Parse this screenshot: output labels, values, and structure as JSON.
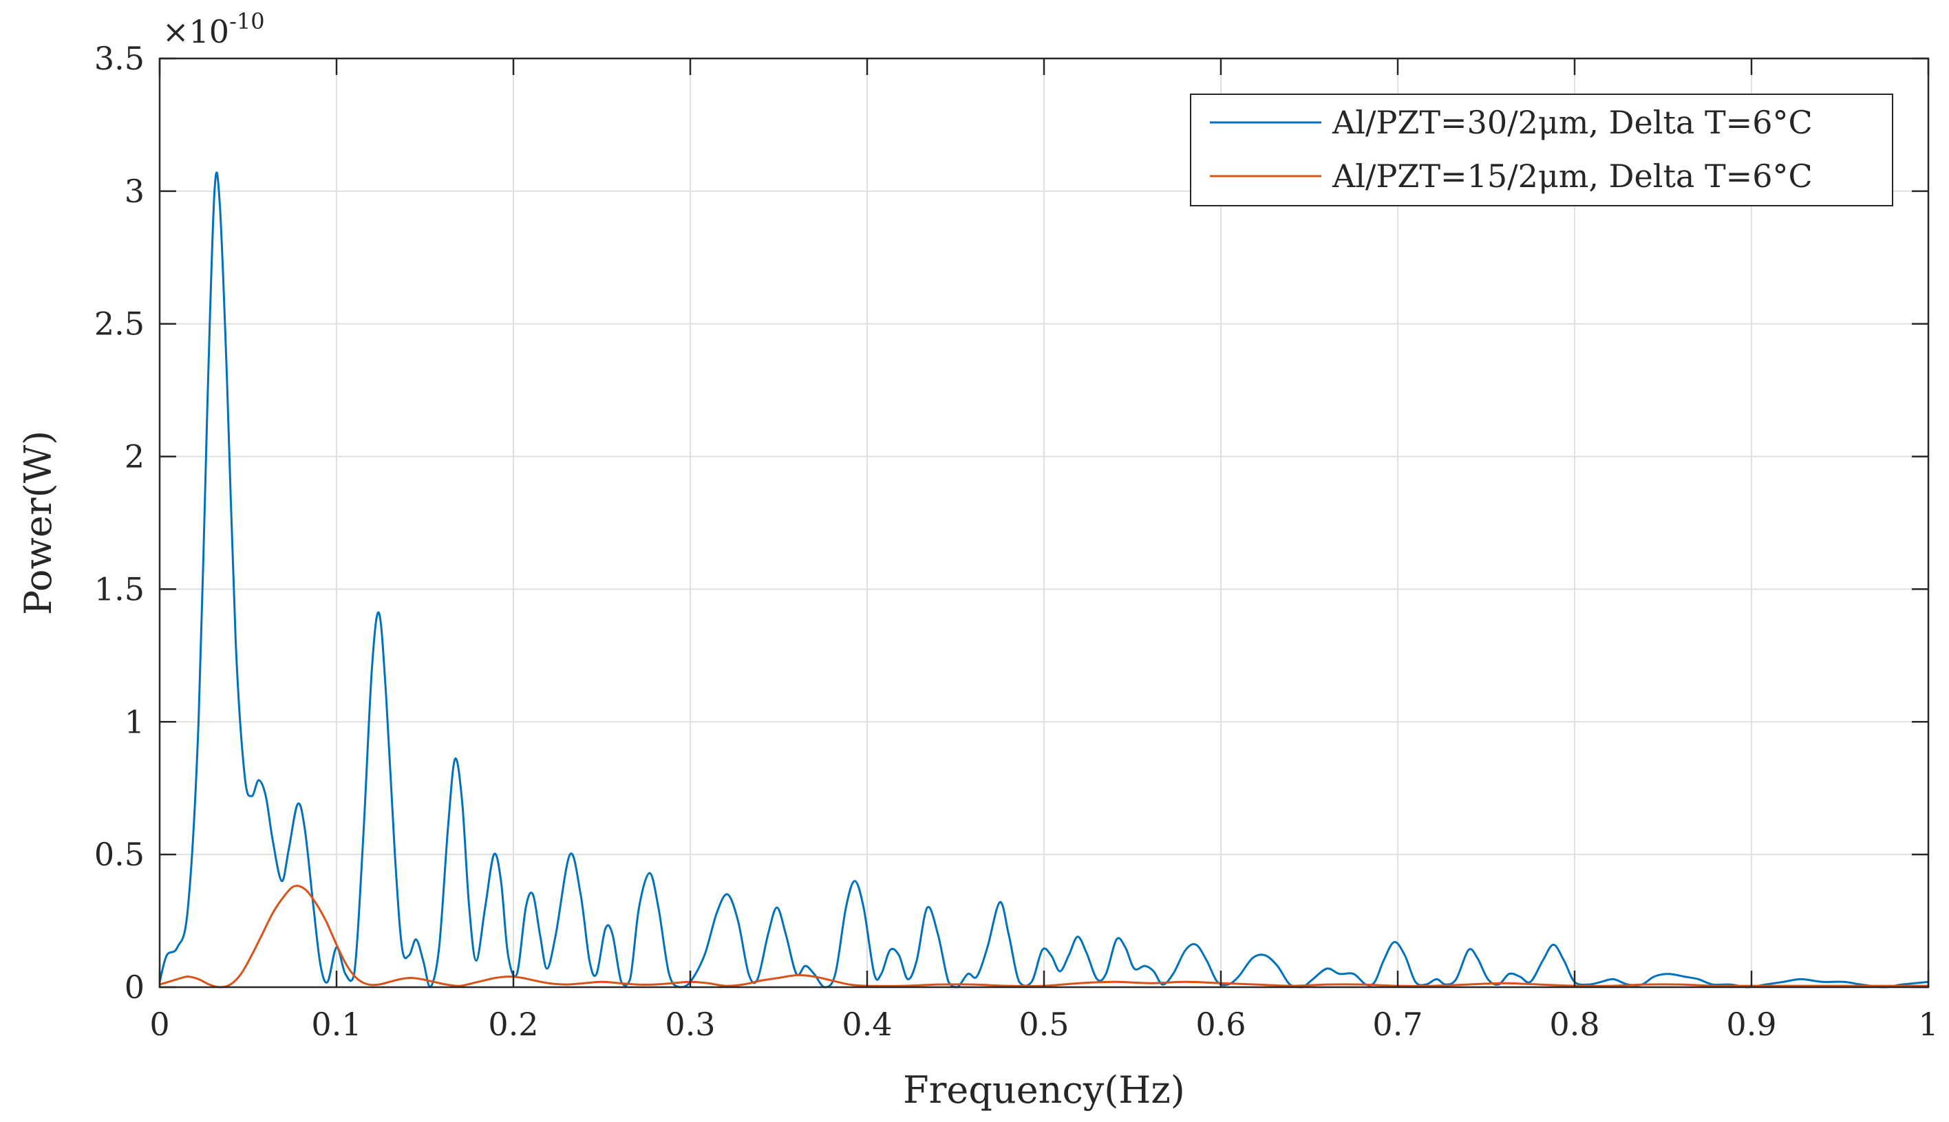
{
  "chart_data": {
    "type": "line",
    "title": "",
    "xlabel": "Frequency(Hz)",
    "ylabel": "Power(W)",
    "xlim": [
      0,
      1
    ],
    "ylim": [
      0,
      3.5
    ],
    "y_multiplier_base": "×10",
    "y_multiplier_exponent": "-10",
    "x_ticks": [
      {
        "v": 0,
        "label": "0"
      },
      {
        "v": 0.1,
        "label": "0.1"
      },
      {
        "v": 0.2,
        "label": "0.2"
      },
      {
        "v": 0.3,
        "label": "0.3"
      },
      {
        "v": 0.4,
        "label": "0.4"
      },
      {
        "v": 0.5,
        "label": "0.5"
      },
      {
        "v": 0.6,
        "label": "0.6"
      },
      {
        "v": 0.7,
        "label": "0.7"
      },
      {
        "v": 0.8,
        "label": "0.8"
      },
      {
        "v": 0.9,
        "label": "0.9"
      },
      {
        "v": 1,
        "label": "1"
      }
    ],
    "y_ticks": [
      {
        "v": 0,
        "label": "0"
      },
      {
        "v": 0.5,
        "label": "0.5"
      },
      {
        "v": 1,
        "label": "1"
      },
      {
        "v": 1.5,
        "label": "1.5"
      },
      {
        "v": 2,
        "label": "2"
      },
      {
        "v": 2.5,
        "label": "2.5"
      },
      {
        "v": 3,
        "label": "3"
      },
      {
        "v": 3.5,
        "label": "3.5"
      }
    ],
    "grid": true,
    "legend_position": "top-right",
    "series": [
      {
        "name": "Al/PZT=30/2μm, Delta T=6°C",
        "color": "#0072BD",
        "points": [
          [
            0.0,
            0.02
          ],
          [
            0.004,
            0.12
          ],
          [
            0.01,
            0.15
          ],
          [
            0.016,
            0.3
          ],
          [
            0.022,
            1.0
          ],
          [
            0.027,
            2.2
          ],
          [
            0.031,
            3.0
          ],
          [
            0.034,
            2.95
          ],
          [
            0.038,
            2.3
          ],
          [
            0.043,
            1.3
          ],
          [
            0.048,
            0.8
          ],
          [
            0.052,
            0.72
          ],
          [
            0.056,
            0.78
          ],
          [
            0.06,
            0.72
          ],
          [
            0.064,
            0.55
          ],
          [
            0.069,
            0.4
          ],
          [
            0.073,
            0.52
          ],
          [
            0.078,
            0.69
          ],
          [
            0.082,
            0.6
          ],
          [
            0.087,
            0.3
          ],
          [
            0.091,
            0.08
          ],
          [
            0.095,
            0.02
          ],
          [
            0.1,
            0.15
          ],
          [
            0.105,
            0.05
          ],
          [
            0.11,
            0.05
          ],
          [
            0.115,
            0.55
          ],
          [
            0.12,
            1.2
          ],
          [
            0.124,
            1.41
          ],
          [
            0.128,
            1.1
          ],
          [
            0.133,
            0.5
          ],
          [
            0.137,
            0.15
          ],
          [
            0.141,
            0.12
          ],
          [
            0.145,
            0.18
          ],
          [
            0.149,
            0.1
          ],
          [
            0.153,
            0.0
          ],
          [
            0.158,
            0.15
          ],
          [
            0.163,
            0.6
          ],
          [
            0.167,
            0.86
          ],
          [
            0.171,
            0.7
          ],
          [
            0.175,
            0.3
          ],
          [
            0.179,
            0.1
          ],
          [
            0.184,
            0.3
          ],
          [
            0.189,
            0.5
          ],
          [
            0.193,
            0.4
          ],
          [
            0.197,
            0.12
          ],
          [
            0.202,
            0.05
          ],
          [
            0.207,
            0.3
          ],
          [
            0.211,
            0.35
          ],
          [
            0.215,
            0.2
          ],
          [
            0.219,
            0.07
          ],
          [
            0.224,
            0.2
          ],
          [
            0.232,
            0.5
          ],
          [
            0.238,
            0.35
          ],
          [
            0.243,
            0.1
          ],
          [
            0.247,
            0.05
          ],
          [
            0.252,
            0.22
          ],
          [
            0.256,
            0.2
          ],
          [
            0.261,
            0.02
          ],
          [
            0.266,
            0.03
          ],
          [
            0.271,
            0.3
          ],
          [
            0.277,
            0.43
          ],
          [
            0.282,
            0.3
          ],
          [
            0.288,
            0.05
          ],
          [
            0.294,
            0.0
          ],
          [
            0.3,
            0.02
          ],
          [
            0.308,
            0.12
          ],
          [
            0.315,
            0.28
          ],
          [
            0.321,
            0.35
          ],
          [
            0.327,
            0.25
          ],
          [
            0.333,
            0.05
          ],
          [
            0.338,
            0.03
          ],
          [
            0.344,
            0.2
          ],
          [
            0.349,
            0.3
          ],
          [
            0.354,
            0.2
          ],
          [
            0.36,
            0.05
          ],
          [
            0.365,
            0.08
          ],
          [
            0.37,
            0.05
          ],
          [
            0.376,
            0.0
          ],
          [
            0.382,
            0.05
          ],
          [
            0.388,
            0.3
          ],
          [
            0.393,
            0.4
          ],
          [
            0.398,
            0.3
          ],
          [
            0.404,
            0.05
          ],
          [
            0.408,
            0.05
          ],
          [
            0.413,
            0.14
          ],
          [
            0.418,
            0.12
          ],
          [
            0.423,
            0.03
          ],
          [
            0.428,
            0.1
          ],
          [
            0.434,
            0.3
          ],
          [
            0.44,
            0.2
          ],
          [
            0.446,
            0.02
          ],
          [
            0.451,
            0.0
          ],
          [
            0.457,
            0.05
          ],
          [
            0.462,
            0.04
          ],
          [
            0.468,
            0.15
          ],
          [
            0.475,
            0.32
          ],
          [
            0.48,
            0.2
          ],
          [
            0.486,
            0.02
          ],
          [
            0.493,
            0.02
          ],
          [
            0.499,
            0.14
          ],
          [
            0.504,
            0.12
          ],
          [
            0.509,
            0.06
          ],
          [
            0.514,
            0.12
          ],
          [
            0.519,
            0.19
          ],
          [
            0.524,
            0.13
          ],
          [
            0.53,
            0.03
          ],
          [
            0.535,
            0.05
          ],
          [
            0.541,
            0.18
          ],
          [
            0.546,
            0.15
          ],
          [
            0.551,
            0.07
          ],
          [
            0.557,
            0.08
          ],
          [
            0.562,
            0.06
          ],
          [
            0.567,
            0.01
          ],
          [
            0.573,
            0.05
          ],
          [
            0.58,
            0.14
          ],
          [
            0.586,
            0.16
          ],
          [
            0.592,
            0.1
          ],
          [
            0.598,
            0.02
          ],
          [
            0.604,
            0.01
          ],
          [
            0.61,
            0.04
          ],
          [
            0.618,
            0.11
          ],
          [
            0.625,
            0.12
          ],
          [
            0.632,
            0.08
          ],
          [
            0.639,
            0.01
          ],
          [
            0.646,
            0.0
          ],
          [
            0.652,
            0.03
          ],
          [
            0.66,
            0.07
          ],
          [
            0.667,
            0.05
          ],
          [
            0.675,
            0.05
          ],
          [
            0.682,
            0.01
          ],
          [
            0.687,
            0.02
          ],
          [
            0.692,
            0.1
          ],
          [
            0.698,
            0.17
          ],
          [
            0.704,
            0.12
          ],
          [
            0.71,
            0.02
          ],
          [
            0.716,
            0.01
          ],
          [
            0.722,
            0.03
          ],
          [
            0.727,
            0.01
          ],
          [
            0.733,
            0.03
          ],
          [
            0.74,
            0.14
          ],
          [
            0.745,
            0.11
          ],
          [
            0.751,
            0.03
          ],
          [
            0.757,
            0.01
          ],
          [
            0.763,
            0.05
          ],
          [
            0.769,
            0.04
          ],
          [
            0.775,
            0.02
          ],
          [
            0.782,
            0.1
          ],
          [
            0.788,
            0.16
          ],
          [
            0.794,
            0.1
          ],
          [
            0.8,
            0.02
          ],
          [
            0.808,
            0.01
          ],
          [
            0.815,
            0.02
          ],
          [
            0.822,
            0.03
          ],
          [
            0.83,
            0.01
          ],
          [
            0.838,
            0.01
          ],
          [
            0.845,
            0.04
          ],
          [
            0.853,
            0.05
          ],
          [
            0.862,
            0.04
          ],
          [
            0.87,
            0.03
          ],
          [
            0.878,
            0.01
          ],
          [
            0.888,
            0.01
          ],
          [
            0.898,
            0.0
          ],
          [
            0.908,
            0.01
          ],
          [
            0.918,
            0.02
          ],
          [
            0.928,
            0.03
          ],
          [
            0.94,
            0.02
          ],
          [
            0.952,
            0.02
          ],
          [
            0.962,
            0.01
          ],
          [
            0.975,
            0.0
          ],
          [
            0.985,
            0.01
          ],
          [
            1.0,
            0.02
          ]
        ]
      },
      {
        "name": "Al/PZT=15/2μm, Delta T=6°C",
        "color": "#D95319",
        "points": [
          [
            0.0,
            0.01
          ],
          [
            0.005,
            0.02
          ],
          [
            0.01,
            0.03
          ],
          [
            0.016,
            0.04
          ],
          [
            0.022,
            0.03
          ],
          [
            0.028,
            0.01
          ],
          [
            0.034,
            0.0
          ],
          [
            0.04,
            0.01
          ],
          [
            0.046,
            0.05
          ],
          [
            0.052,
            0.12
          ],
          [
            0.058,
            0.2
          ],
          [
            0.064,
            0.28
          ],
          [
            0.07,
            0.34
          ],
          [
            0.076,
            0.38
          ],
          [
            0.082,
            0.37
          ],
          [
            0.088,
            0.32
          ],
          [
            0.094,
            0.25
          ],
          [
            0.1,
            0.16
          ],
          [
            0.106,
            0.08
          ],
          [
            0.112,
            0.03
          ],
          [
            0.118,
            0.01
          ],
          [
            0.124,
            0.01
          ],
          [
            0.13,
            0.02
          ],
          [
            0.136,
            0.03
          ],
          [
            0.142,
            0.035
          ],
          [
            0.148,
            0.03
          ],
          [
            0.155,
            0.02
          ],
          [
            0.162,
            0.01
          ],
          [
            0.17,
            0.005
          ],
          [
            0.18,
            0.02
          ],
          [
            0.19,
            0.035
          ],
          [
            0.198,
            0.04
          ],
          [
            0.205,
            0.035
          ],
          [
            0.212,
            0.025
          ],
          [
            0.22,
            0.015
          ],
          [
            0.23,
            0.01
          ],
          [
            0.24,
            0.015
          ],
          [
            0.25,
            0.02
          ],
          [
            0.26,
            0.015
          ],
          [
            0.27,
            0.01
          ],
          [
            0.28,
            0.01
          ],
          [
            0.29,
            0.015
          ],
          [
            0.3,
            0.02
          ],
          [
            0.31,
            0.015
          ],
          [
            0.32,
            0.005
          ],
          [
            0.33,
            0.01
          ],
          [
            0.34,
            0.025
          ],
          [
            0.35,
            0.035
          ],
          [
            0.36,
            0.045
          ],
          [
            0.37,
            0.04
          ],
          [
            0.38,
            0.025
          ],
          [
            0.39,
            0.01
          ],
          [
            0.4,
            0.005
          ],
          [
            0.42,
            0.005
          ],
          [
            0.44,
            0.01
          ],
          [
            0.46,
            0.01
          ],
          [
            0.48,
            0.005
          ],
          [
            0.5,
            0.005
          ],
          [
            0.52,
            0.015
          ],
          [
            0.54,
            0.02
          ],
          [
            0.56,
            0.015
          ],
          [
            0.58,
            0.02
          ],
          [
            0.6,
            0.015
          ],
          [
            0.62,
            0.01
          ],
          [
            0.64,
            0.005
          ],
          [
            0.66,
            0.01
          ],
          [
            0.68,
            0.01
          ],
          [
            0.7,
            0.005
          ],
          [
            0.72,
            0.005
          ],
          [
            0.74,
            0.01
          ],
          [
            0.76,
            0.015
          ],
          [
            0.78,
            0.01
          ],
          [
            0.8,
            0.005
          ],
          [
            0.82,
            0.005
          ],
          [
            0.84,
            0.01
          ],
          [
            0.86,
            0.01
          ],
          [
            0.88,
            0.005
          ],
          [
            0.9,
            0.005
          ],
          [
            0.92,
            0.005
          ],
          [
            0.94,
            0.005
          ],
          [
            0.96,
            0.005
          ],
          [
            0.98,
            0.005
          ],
          [
            1.0,
            0.005
          ]
        ]
      }
    ]
  }
}
